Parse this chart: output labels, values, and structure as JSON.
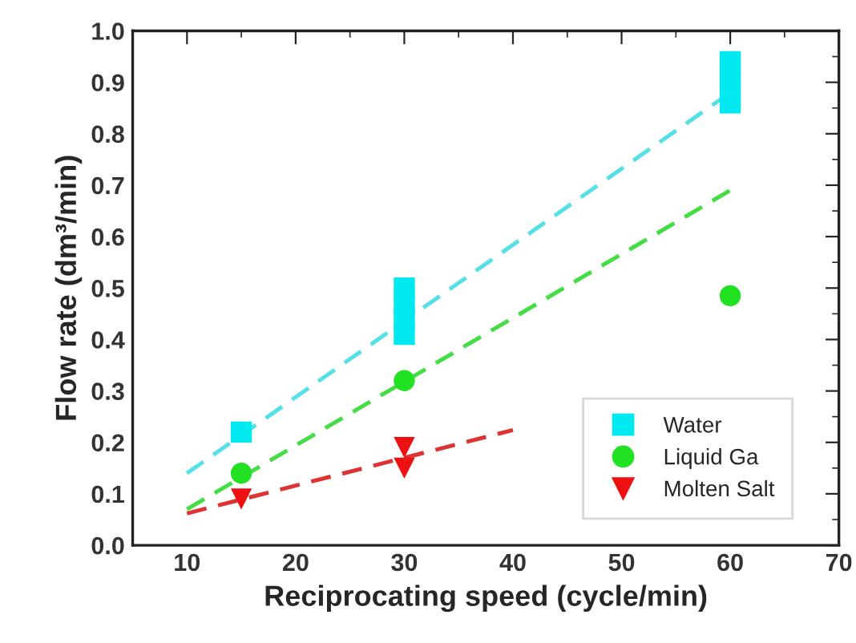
{
  "chart_data": {
    "type": "scatter",
    "xlabel": "Reciprocating speed (cycle/min)",
    "ylabel": "Flow rate (dm³/min)",
    "xlim": [
      5,
      70
    ],
    "xticks": [
      10,
      20,
      30,
      40,
      50,
      60,
      70
    ],
    "ylim": [
      0,
      1.0
    ],
    "yticks": [
      {
        "value": 0,
        "label": "0.0"
      },
      0.1,
      0.2,
      0.3,
      0.4,
      0.5,
      0.6,
      0.7,
      0.8,
      0.9,
      {
        "value": 1,
        "label": "1.0"
      }
    ],
    "grid": false,
    "legend": "bottom right",
    "series": [
      {
        "name": "Water",
        "color": "#00e8f0",
        "marker": "square",
        "x": [
          15,
          30,
          30,
          30,
          30,
          60,
          60,
          60
        ],
        "values": [
          0.22,
          0.41,
          0.44,
          0.47,
          0.5,
          0.86,
          0.9,
          0.94
        ]
      },
      {
        "name": "Liquid Ga",
        "color": "#22e022",
        "marker": "circle",
        "x": [
          15,
          30,
          60
        ],
        "values": [
          0.14,
          0.32,
          0.485
        ]
      },
      {
        "name": "Molten Salt",
        "color": "#ee1111",
        "marker": "triangle",
        "x": [
          15,
          30,
          30
        ],
        "values": [
          0.09,
          0.15,
          0.19
        ]
      },
      {
        "type": "line",
        "color": "#55e0e8",
        "line_style": "dashed",
        "marker": "none",
        "x": [
          10,
          60
        ],
        "values": [
          0.14,
          0.88
        ]
      },
      {
        "type": "line",
        "color": "#44dd44",
        "line_style": "dashed",
        "marker": "none",
        "x": [
          10,
          60
        ],
        "values": [
          0.07,
          0.69
        ]
      },
      {
        "type": "line",
        "color": "#dd3333",
        "line_style": "dashed",
        "marker": "none",
        "x": [
          10,
          40
        ],
        "values": [
          0.062,
          0.224
        ]
      }
    ]
  }
}
